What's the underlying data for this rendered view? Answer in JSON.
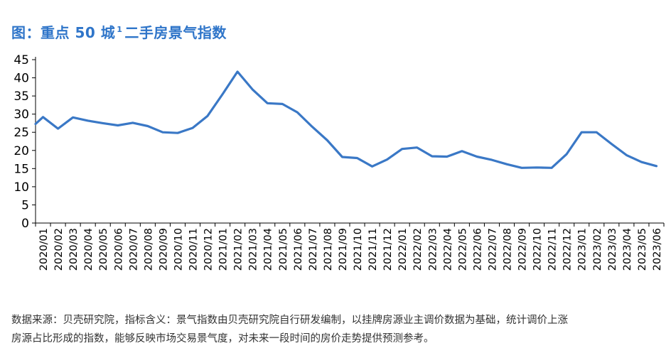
{
  "title": {
    "main": "图：重点 50 城",
    "sup": "1",
    "rest": "二手房景气指数"
  },
  "chart_data": {
    "type": "line",
    "ylim": [
      0,
      45
    ],
    "yticks": [
      0,
      5,
      10,
      15,
      20,
      25,
      30,
      35,
      40,
      45
    ],
    "grid": false,
    "line_color": "#3a78c6",
    "x_labels": [
      "2020/01",
      "2020/02",
      "2020/03",
      "2020/04",
      "2020/05",
      "2020/06",
      "2020/07",
      "2020/08",
      "2020/09",
      "2020/10",
      "2020/11",
      "2020/12",
      "2021/01",
      "2021/02",
      "2021/03",
      "2021/04",
      "2021/05",
      "2021/06",
      "2021/07",
      "2021/08",
      "2021/09",
      "2021/10",
      "2021/11",
      "2021/12",
      "2022/01",
      "2022/02",
      "2022/03",
      "2022/04",
      "2022/05",
      "2022/06",
      "2022/07",
      "2022/08",
      "2022/09",
      "2022/10",
      "2022/11",
      "2022/12",
      "2023/01",
      "2023/02",
      "2023/03",
      "2023/04",
      "2023/05",
      "2023/06"
    ],
    "series": [
      {
        "x": [
          0,
          0.5,
          1.5,
          2.5,
          3.5,
          4.5,
          5.5,
          6.5,
          7.5,
          8.5,
          9.5,
          10.5,
          11.5,
          12.5,
          13.5,
          14.5,
          15.5,
          16.5,
          17.5,
          18.5,
          19.5,
          20.5,
          21.5,
          22.5,
          23.5,
          24.5,
          25.5,
          26.5,
          27.5,
          28.5,
          29.5,
          30.5,
          31.5,
          32.5,
          33.5,
          34.5,
          35.5,
          36.5,
          37.5,
          38.5,
          39.5,
          40.5,
          41.5
        ],
        "values": [
          27.3,
          29.2,
          26.0,
          29.1,
          28.2,
          27.5,
          26.9,
          27.6,
          26.7,
          25.0,
          24.8,
          26.2,
          29.5,
          35.5,
          41.7,
          36.8,
          33.0,
          32.8,
          30.5,
          26.5,
          22.8,
          18.2,
          17.9,
          15.6,
          17.5,
          20.4,
          20.8,
          18.4,
          18.3,
          19.8,
          18.3,
          17.4,
          16.2,
          15.2,
          15.3,
          15.2,
          19.0,
          25.0,
          25.0,
          21.8,
          18.7,
          16.8,
          15.7
        ]
      }
    ]
  },
  "footnote": {
    "line1": "数据来源：贝壳研究院，指标含义：景气指数由贝壳研究院自行研发编制，以挂牌房源业主调价数据为基础，统计调价上涨",
    "line2": "房源占比形成的指数，能够反映市场交易景气度，对未来一段时间的房价走势提供预测参考。"
  }
}
